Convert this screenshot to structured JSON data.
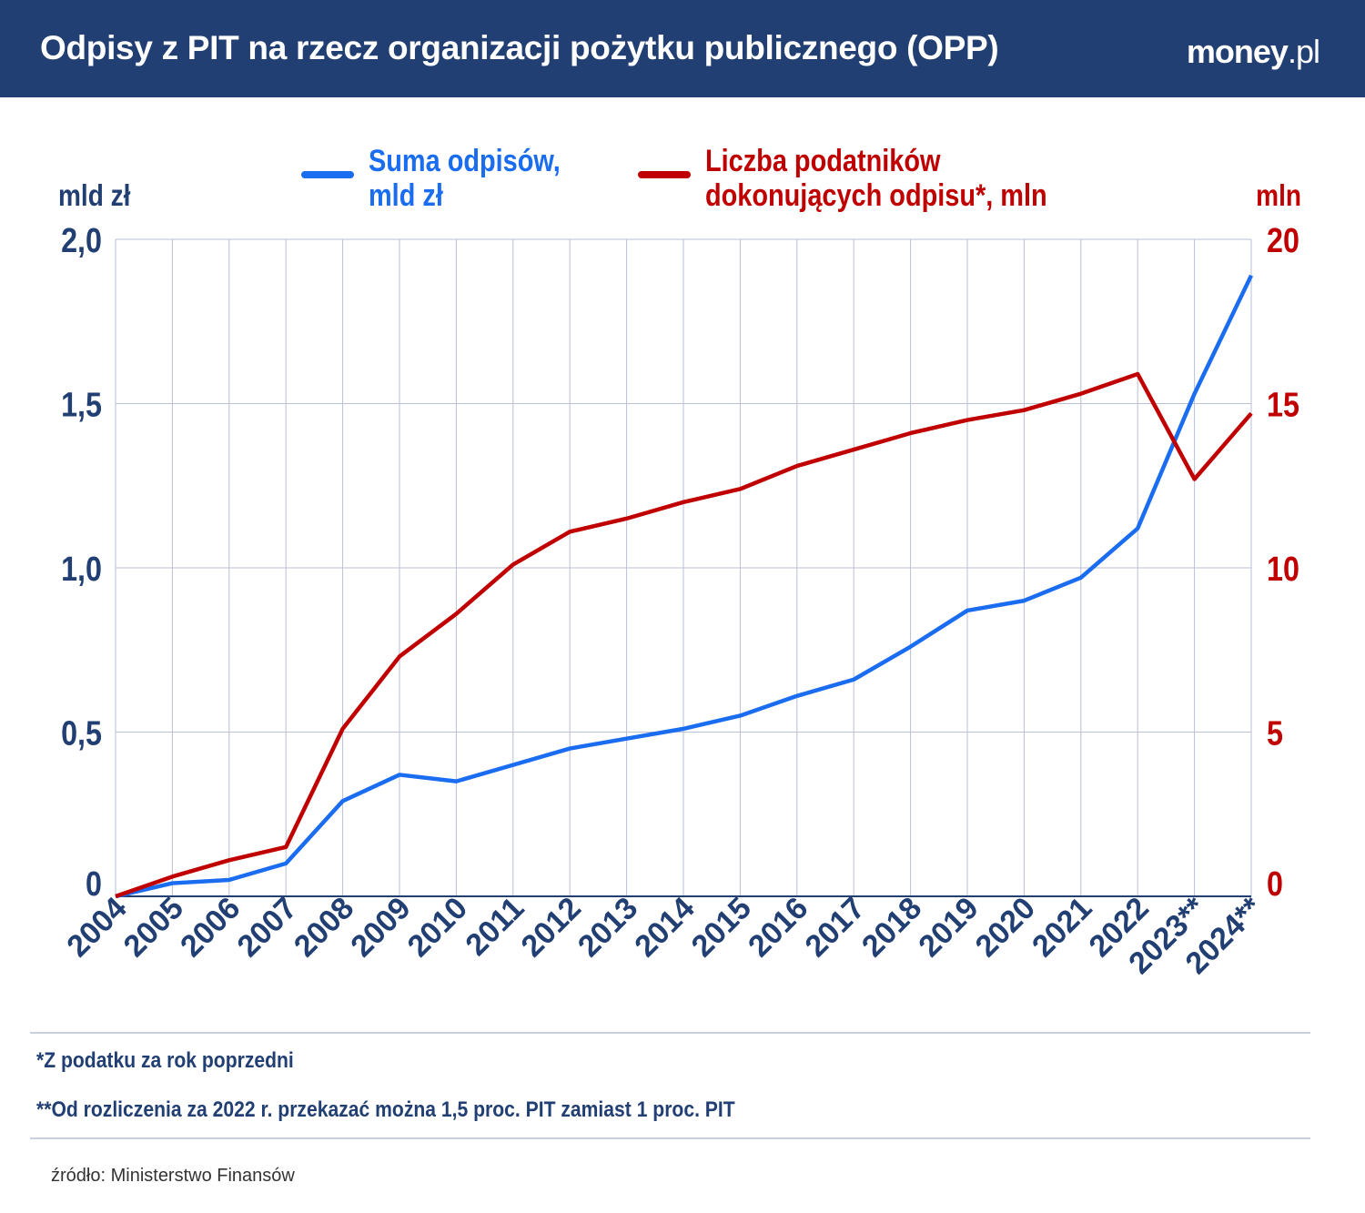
{
  "header": {
    "title": "Odpisy z PIT na rzecz organizacji pożytku publicznego (OPP)",
    "logo": "money.pl"
  },
  "footnotes": [
    "*Z podatku za rok poprzedni",
    "**Od rozliczenia za 2022 r. przekazać można 1,5 proc. PIT zamiast 1 proc. PIT"
  ],
  "source": "źródło: Ministerstwo Finansów",
  "chart_data": {
    "type": "line",
    "x": [
      "2004",
      "2005",
      "2006",
      "2007",
      "2008",
      "2009",
      "2010",
      "2011",
      "2012",
      "2013",
      "2014",
      "2015",
      "2016",
      "2017",
      "2018",
      "2019",
      "2020",
      "2021",
      "2022",
      "2023**",
      "2024**"
    ],
    "ylabel_left": "mld zł",
    "ylabel_right": "mln",
    "ylim_left": [
      0,
      2
    ],
    "ylim_right": [
      0,
      20
    ],
    "yticks_left": [
      "0",
      "0,5",
      "1,0",
      "1,5",
      "2,0"
    ],
    "yticks_right": [
      "0",
      "5",
      "10",
      "15",
      "20"
    ],
    "grid": true,
    "legend_position": "top",
    "series": [
      {
        "name": "Suma odpisów, mld zł",
        "legend_lines": [
          "Suma odpisów,",
          "mld zł"
        ],
        "axis": "left",
        "color": "#1a6cf0",
        "values": [
          0,
          0.04,
          0.05,
          0.1,
          0.29,
          0.37,
          0.35,
          0.4,
          0.45,
          0.48,
          0.51,
          0.55,
          0.61,
          0.66,
          0.76,
          0.87,
          0.9,
          0.97,
          1.12,
          1.53,
          1.89
        ]
      },
      {
        "name": "Liczba podatników dokonujących odpisu*, mln",
        "legend_lines": [
          "Liczba podatników",
          "dokonujących odpisu*, mln"
        ],
        "axis": "right",
        "color": "#c00000",
        "values": [
          0,
          0.6,
          1.1,
          1.5,
          5.1,
          7.3,
          8.6,
          10.1,
          11.1,
          11.5,
          12.0,
          12.4,
          13.1,
          13.6,
          14.1,
          14.5,
          14.8,
          15.3,
          15.9,
          12.7,
          14.7
        ]
      }
    ]
  }
}
